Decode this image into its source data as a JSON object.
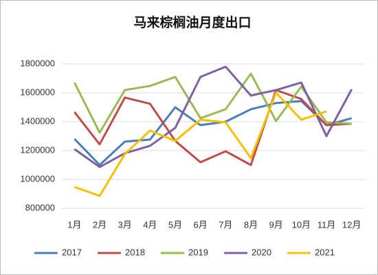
{
  "chart_data": {
    "type": "line",
    "title": "马来棕榈油月度出口",
    "categories": [
      "1月",
      "2月",
      "3月",
      "4月",
      "5月",
      "6月",
      "7月",
      "8月",
      "9月",
      "10月",
      "11月",
      "12月"
    ],
    "series": [
      {
        "name": "2017",
        "color": "#4a7ebb",
        "values": [
          1281000,
          1100000,
          1262000,
          1276000,
          1500000,
          1376000,
          1400000,
          1486000,
          1529000,
          1543000,
          1376000,
          1424000
        ]
      },
      {
        "name": "2018",
        "color": "#be4b48",
        "values": [
          1467000,
          1243000,
          1567000,
          1524000,
          1267000,
          1119000,
          1195000,
          1100000,
          1619000,
          1557000,
          1376000,
          1386000
        ]
      },
      {
        "name": "2019",
        "color": "#98b954",
        "values": [
          1671000,
          1324000,
          1619000,
          1648000,
          1710000,
          1424000,
          1486000,
          1733000,
          1405000,
          1643000,
          1395000,
          1386000
        ]
      },
      {
        "name": "2020",
        "color": "#7d60a0",
        "values": [
          1210000,
          1086000,
          1181000,
          1233000,
          1357000,
          1710000,
          1781000,
          1581000,
          1619000,
          1671000,
          1300000,
          1624000
        ]
      },
      {
        "name": "2021",
        "color": "#f5c000",
        "values": [
          948000,
          886000,
          1176000,
          1338000,
          1267000,
          1414000,
          1395000,
          1148000,
          1600000,
          1414000,
          1471000,
          null
        ]
      }
    ],
    "ylim": [
      800000,
      1800000
    ],
    "yticks": [
      800000,
      1000000,
      1200000,
      1400000,
      1600000,
      1800000
    ],
    "grid": true,
    "legend": "bottom"
  }
}
